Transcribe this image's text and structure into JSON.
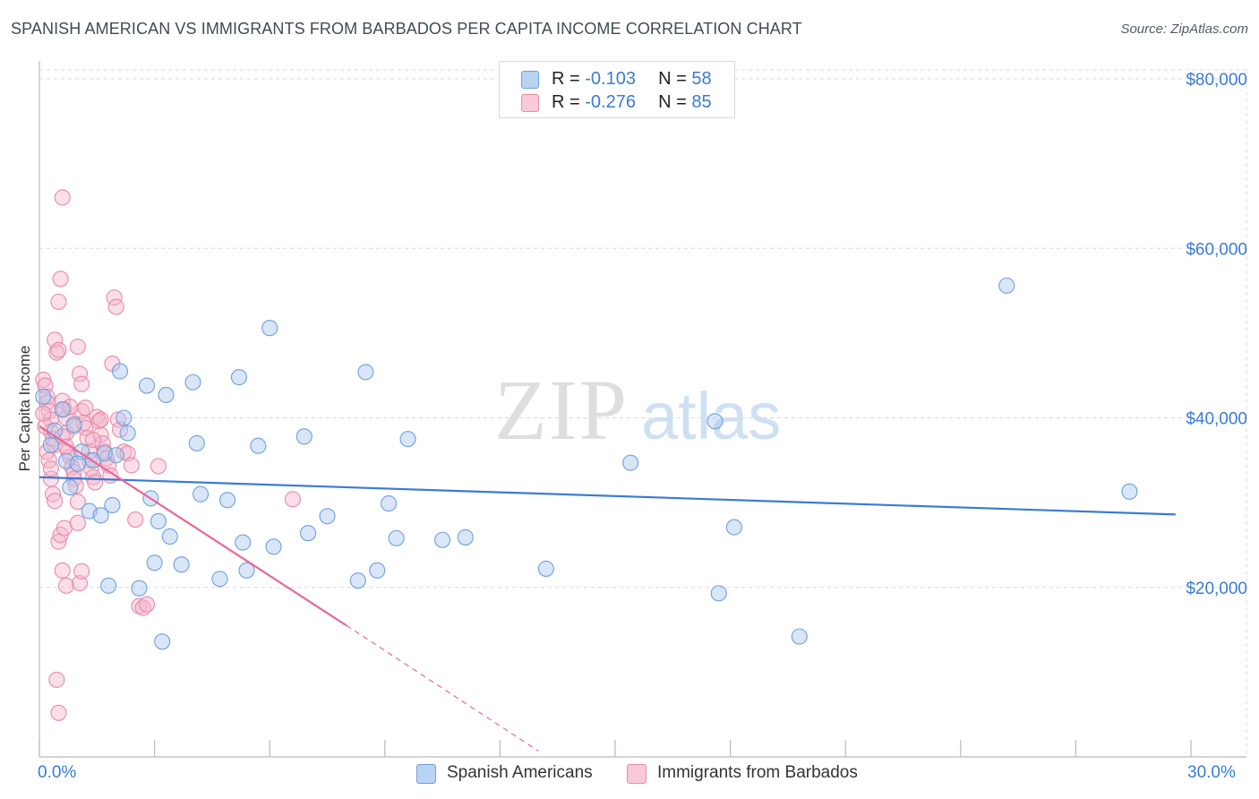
{
  "title": "SPANISH AMERICAN VS IMMIGRANTS FROM BARBADOS PER CAPITA INCOME CORRELATION CHART",
  "source": "Source: ZipAtlas.com",
  "watermark": {
    "zip": "ZIP",
    "atlas": "atlas"
  },
  "colors": {
    "blue": "#3a7bd5",
    "blue_fill": "#a9c8f0",
    "pink": "#e8679a",
    "pink_fill": "#f5b6cc",
    "grid": "#d8d8d8",
    "tick_text": "#3a7bd5"
  },
  "legend": {
    "rows": [
      {
        "r_label": "R = ",
        "r_value": "-0.103",
        "n_label": "N = ",
        "n_value": "58"
      },
      {
        "r_label": "R = ",
        "r_value": "-0.276",
        "n_label": "N = ",
        "n_value": "85"
      }
    ]
  },
  "bottom_legend": [
    "Spanish Americans",
    "Immigrants from Barbados"
  ],
  "chart_data": {
    "type": "scatter",
    "title": "SPANISH AMERICAN VS IMMIGRANTS FROM BARBADOS PER CAPITA INCOME CORRELATION CHART",
    "xlabel": "",
    "ylabel": "Per Capita Income",
    "xlim": [
      0,
      30
    ],
    "ylim": [
      0,
      80000
    ],
    "x_tick_labels": [
      "0.0%",
      "30.0%"
    ],
    "y_ticks": [
      20000,
      40000,
      60000,
      80000
    ],
    "y_tick_labels": [
      "$20,000",
      "$40,000",
      "$60,000",
      "$80,000"
    ],
    "grid": true,
    "series": [
      {
        "name": "Spanish Americans",
        "r": -0.103,
        "n": 58,
        "trend": {
          "x0": 0.0,
          "y0": 33000,
          "x1": 29.6,
          "y1": 28600
        },
        "points": [
          [
            0.1,
            42500
          ],
          [
            0.3,
            36800
          ],
          [
            0.6,
            41000
          ],
          [
            0.8,
            31800
          ],
          [
            1.1,
            36000
          ],
          [
            0.7,
            34900
          ],
          [
            1.3,
            29000
          ],
          [
            1.4,
            35000
          ],
          [
            1.6,
            28500
          ],
          [
            1.7,
            35800
          ],
          [
            1.8,
            20200
          ],
          [
            1.9,
            29700
          ],
          [
            2.0,
            35600
          ],
          [
            2.1,
            45500
          ],
          [
            2.2,
            40000
          ],
          [
            2.3,
            38200
          ],
          [
            2.6,
            19900
          ],
          [
            2.8,
            43800
          ],
          [
            2.9,
            30500
          ],
          [
            3.0,
            22900
          ],
          [
            3.1,
            27800
          ],
          [
            3.2,
            13600
          ],
          [
            3.3,
            42700
          ],
          [
            3.4,
            26000
          ],
          [
            3.7,
            22700
          ],
          [
            4.0,
            44200
          ],
          [
            4.1,
            37000
          ],
          [
            4.2,
            31000
          ],
          [
            4.7,
            21000
          ],
          [
            4.9,
            30300
          ],
          [
            5.2,
            44800
          ],
          [
            5.3,
            25300
          ],
          [
            5.4,
            22000
          ],
          [
            5.7,
            36700
          ],
          [
            6.0,
            50600
          ],
          [
            6.1,
            24800
          ],
          [
            6.9,
            37800
          ],
          [
            7.0,
            26400
          ],
          [
            7.5,
            28400
          ],
          [
            8.3,
            20800
          ],
          [
            8.5,
            45400
          ],
          [
            8.8,
            22000
          ],
          [
            9.1,
            29900
          ],
          [
            9.3,
            25800
          ],
          [
            9.6,
            37500
          ],
          [
            10.5,
            25600
          ],
          [
            11.1,
            25900
          ],
          [
            13.2,
            22200
          ],
          [
            15.4,
            34700
          ],
          [
            17.6,
            39600
          ],
          [
            17.7,
            19300
          ],
          [
            18.1,
            27100
          ],
          [
            19.8,
            14200
          ],
          [
            25.2,
            55600
          ],
          [
            28.4,
            31300
          ],
          [
            0.4,
            38500
          ],
          [
            0.9,
            39200
          ],
          [
            1.0,
            34600
          ]
        ]
      },
      {
        "name": "Immigrants from Barbados",
        "r": -0.276,
        "n": 85,
        "trend": {
          "x0": 0.0,
          "y0": 39000,
          "x1": 8.0,
          "y1": 15500,
          "dash_x1": 13.0,
          "dash_y1": 700
        },
        "points": [
          [
            0.1,
            44500
          ],
          [
            0.15,
            43800
          ],
          [
            0.2,
            42500
          ],
          [
            0.2,
            41800
          ],
          [
            0.25,
            40800
          ],
          [
            0.3,
            39800
          ],
          [
            0.3,
            38400
          ],
          [
            0.35,
            37500
          ],
          [
            0.4,
            36800
          ],
          [
            0.4,
            49200
          ],
          [
            0.45,
            47700
          ],
          [
            0.5,
            48000
          ],
          [
            0.5,
            53700
          ],
          [
            0.55,
            56400
          ],
          [
            0.6,
            66000
          ],
          [
            0.6,
            42000
          ],
          [
            0.65,
            41000
          ],
          [
            0.7,
            40000
          ],
          [
            0.7,
            38200
          ],
          [
            0.75,
            36000
          ],
          [
            0.8,
            35400
          ],
          [
            0.85,
            34200
          ],
          [
            0.9,
            33600
          ],
          [
            0.9,
            32800
          ],
          [
            0.95,
            32000
          ],
          [
            1.0,
            30100
          ],
          [
            1.0,
            48400
          ],
          [
            1.05,
            45200
          ],
          [
            1.1,
            44000
          ],
          [
            1.1,
            40800
          ],
          [
            1.15,
            39400
          ],
          [
            1.2,
            38800
          ],
          [
            1.25,
            37600
          ],
          [
            1.3,
            36000
          ],
          [
            1.3,
            35000
          ],
          [
            1.35,
            34000
          ],
          [
            1.4,
            33000
          ],
          [
            1.45,
            32400
          ],
          [
            1.5,
            40100
          ],
          [
            1.55,
            39600
          ],
          [
            1.6,
            38000
          ],
          [
            1.65,
            37000
          ],
          [
            1.7,
            36000
          ],
          [
            1.75,
            35200
          ],
          [
            1.8,
            34400
          ],
          [
            1.85,
            33200
          ],
          [
            1.9,
            46400
          ],
          [
            1.95,
            54200
          ],
          [
            2.0,
            53100
          ],
          [
            2.05,
            39800
          ],
          [
            2.1,
            38600
          ],
          [
            2.2,
            36000
          ],
          [
            2.3,
            35800
          ],
          [
            2.4,
            34400
          ],
          [
            2.5,
            28000
          ],
          [
            2.6,
            17800
          ],
          [
            2.7,
            17600
          ],
          [
            2.8,
            18000
          ],
          [
            0.5,
            25400
          ],
          [
            0.55,
            26200
          ],
          [
            0.6,
            22000
          ],
          [
            0.65,
            27000
          ],
          [
            0.7,
            20200
          ],
          [
            1.0,
            27600
          ],
          [
            1.05,
            20500
          ],
          [
            1.1,
            21900
          ],
          [
            0.45,
            9100
          ],
          [
            0.5,
            5200
          ],
          [
            6.6,
            30400
          ],
          [
            3.1,
            34300
          ],
          [
            0.3,
            32800
          ],
          [
            0.35,
            31000
          ],
          [
            0.4,
            30200
          ],
          [
            0.2,
            36000
          ],
          [
            0.25,
            35000
          ],
          [
            0.3,
            34000
          ],
          [
            0.15,
            39000
          ],
          [
            0.1,
            40500
          ],
          [
            0.8,
            41300
          ],
          [
            0.9,
            39000
          ],
          [
            1.2,
            41200
          ],
          [
            1.4,
            37400
          ],
          [
            0.6,
            37800
          ],
          [
            0.7,
            36600
          ],
          [
            1.6,
            39800
          ]
        ]
      }
    ]
  }
}
